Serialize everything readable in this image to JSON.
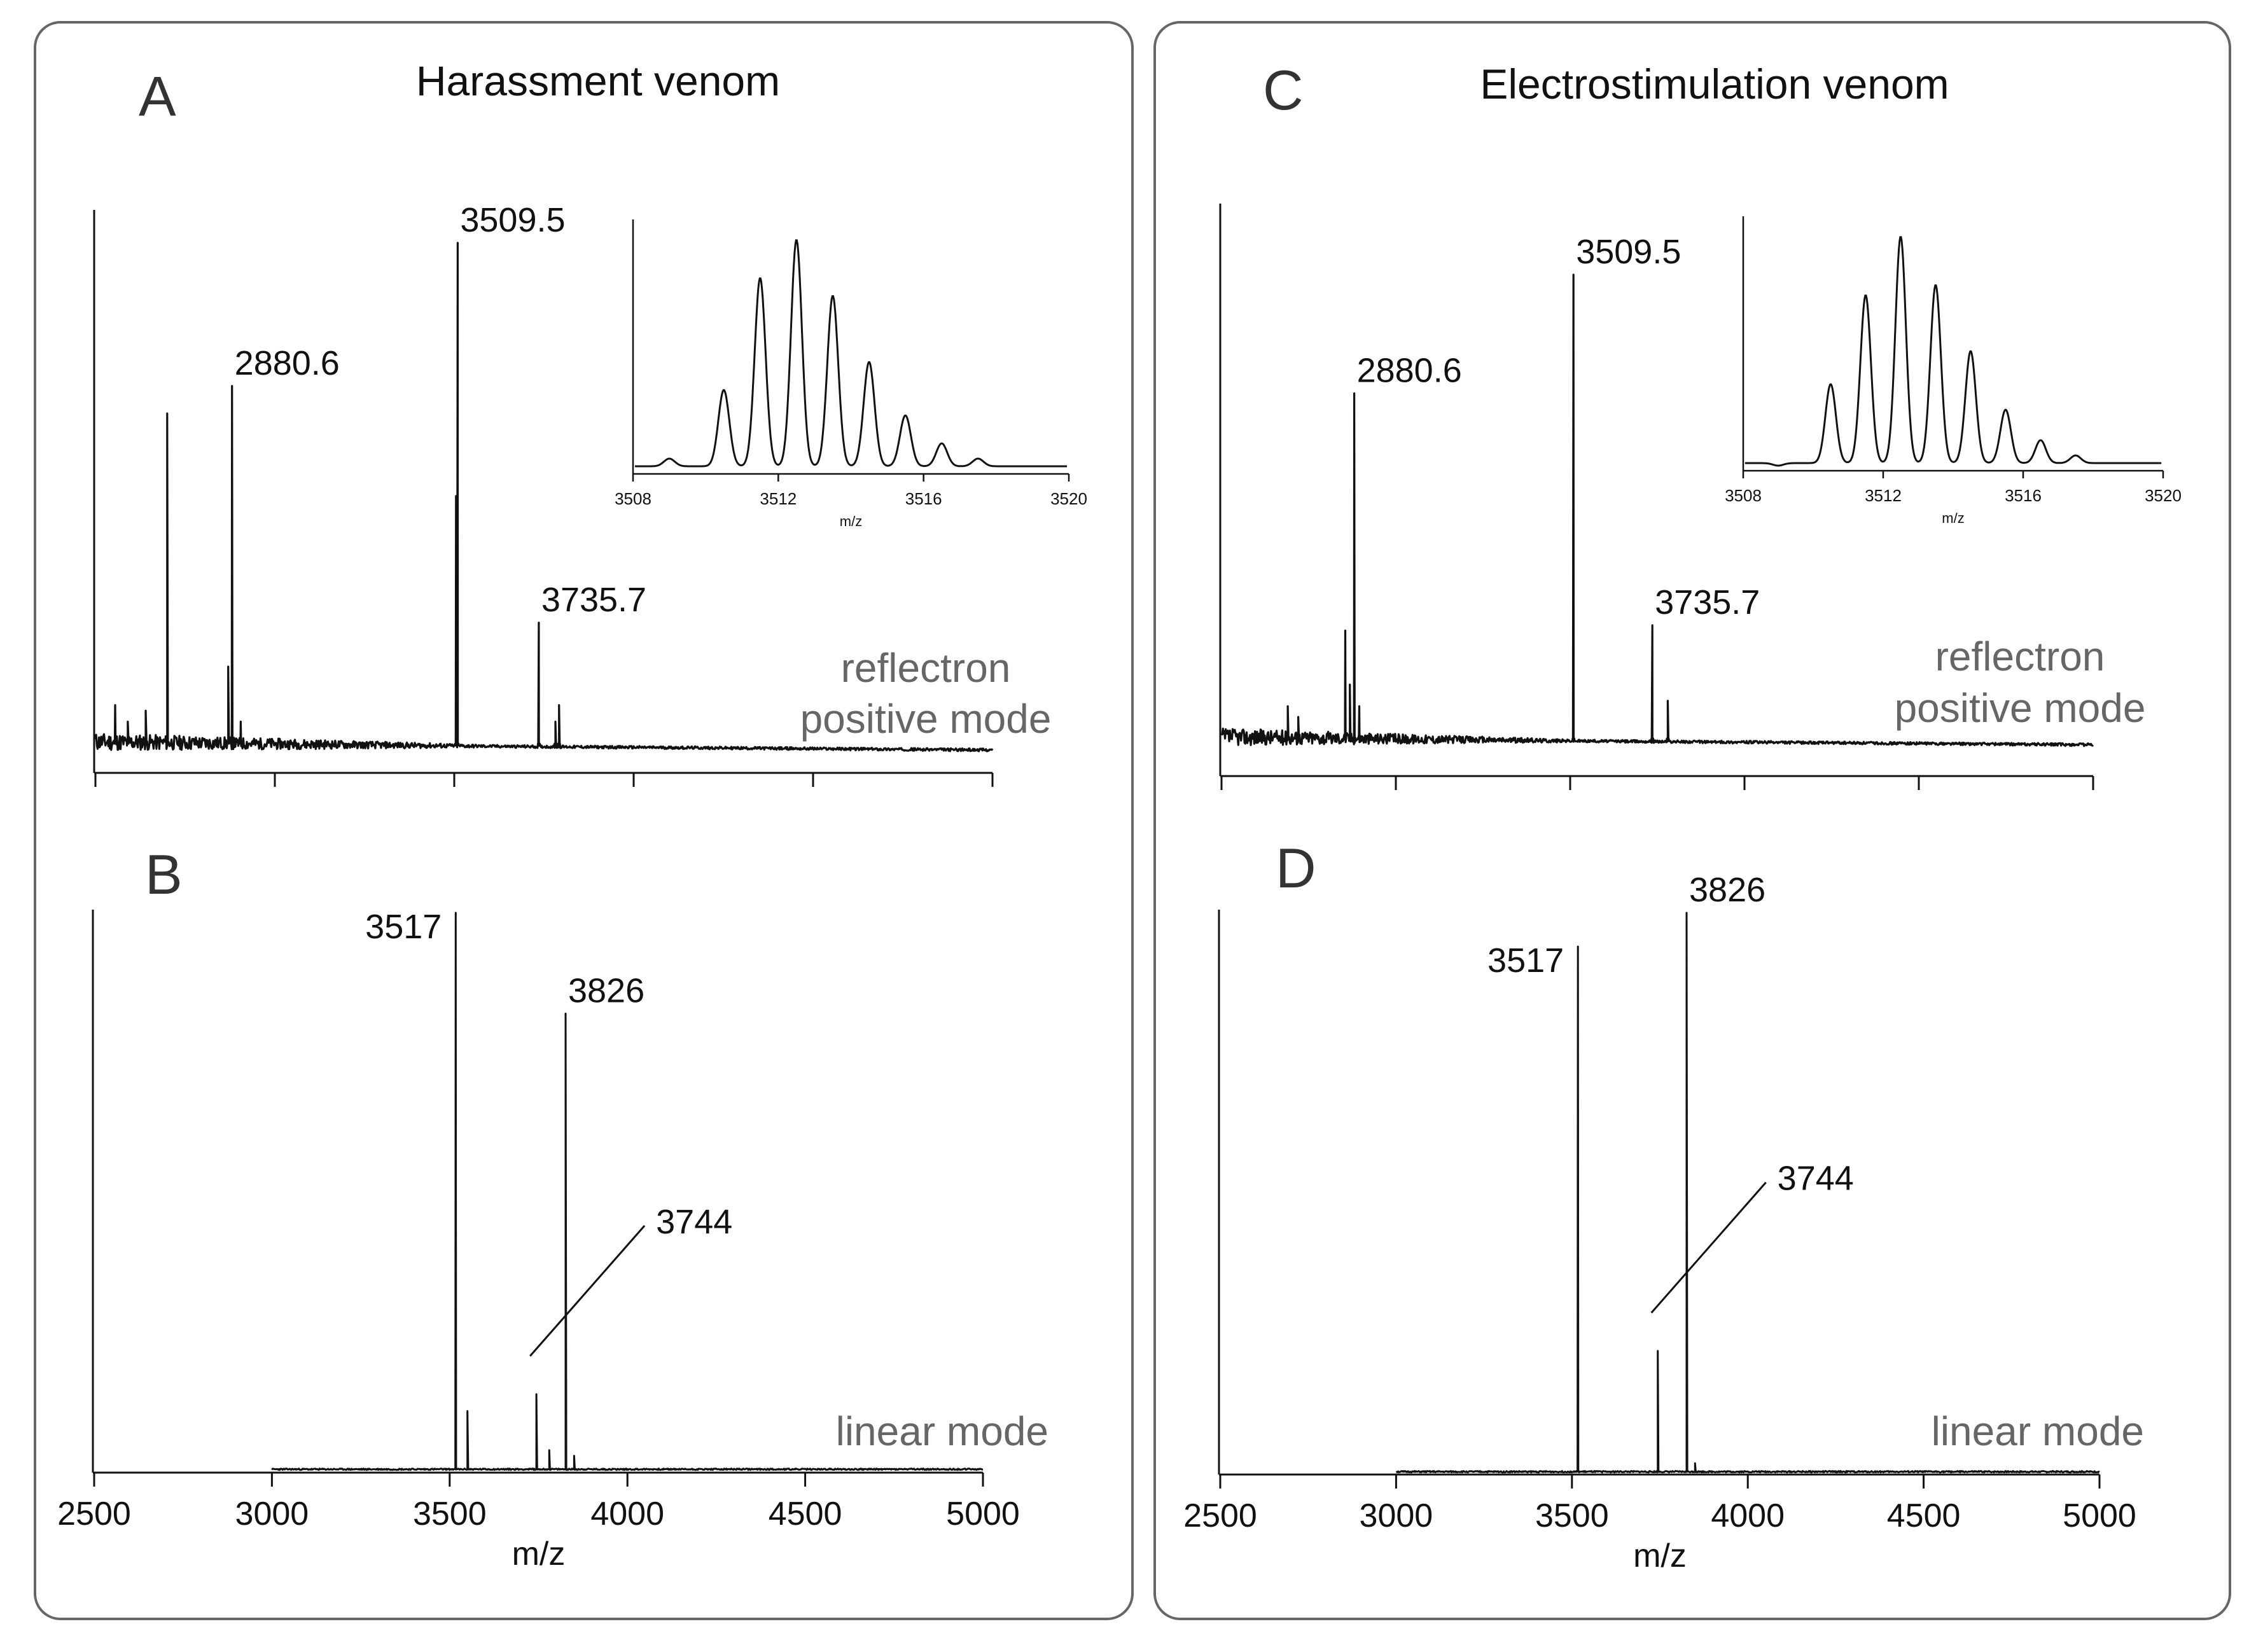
{
  "figure": {
    "panels_left": {
      "title": "Harassment venom"
    },
    "panels_right": {
      "title": "Electrostimulation venom"
    }
  },
  "chart_data": [
    {
      "id": "A",
      "type": "line",
      "letter": "A",
      "title": "Harassment venom",
      "mode_label_line1": "reflectron",
      "mode_label_line2": "positive mode",
      "xlim": [
        2500,
        5000
      ],
      "ylim": [
        0,
        100
      ],
      "xticks": [
        2500,
        3000,
        3500,
        4000,
        4500,
        5000
      ],
      "show_tick_labels": false,
      "xlabel": "",
      "series": [
        {
          "name": "reflectron spectrum A",
          "baseline": 3,
          "noise_end": 3600,
          "peaks": [
            {
              "x": 2555,
              "y": 10
            },
            {
              "x": 2590,
              "y": 7
            },
            {
              "x": 2640,
              "y": 9
            },
            {
              "x": 2700,
              "y": 63
            },
            {
              "x": 2870,
              "y": 17
            },
            {
              "x": 2880.6,
              "y": 68
            },
            {
              "x": 2905,
              "y": 7
            },
            {
              "x": 3505,
              "y": 48
            },
            {
              "x": 3509.5,
              "y": 94
            },
            {
              "x": 3735.7,
              "y": 25
            },
            {
              "x": 3782,
              "y": 7
            },
            {
              "x": 3792,
              "y": 10
            }
          ]
        }
      ],
      "annotations": [
        {
          "label": "2880.6",
          "x": 2880.6,
          "y": 68
        },
        {
          "label": "3509.5",
          "x": 3509.5,
          "y": 94
        },
        {
          "label": "3735.7",
          "x": 3735.7,
          "y": 25
        }
      ],
      "inset": {
        "xlim": [
          3508,
          3520
        ],
        "xticks": [
          3508,
          3512,
          3516,
          3520
        ],
        "xlabel": "m/z",
        "baseline": 3,
        "peaks": [
          {
            "x": 3509.0,
            "y": 6
          },
          {
            "x": 3510.0,
            "y": 3
          },
          {
            "x": 3510.5,
            "y": 33
          },
          {
            "x": 3511.5,
            "y": 77
          },
          {
            "x": 3512.5,
            "y": 92
          },
          {
            "x": 3513.5,
            "y": 70
          },
          {
            "x": 3514.5,
            "y": 44
          },
          {
            "x": 3515.5,
            "y": 23
          },
          {
            "x": 3516.5,
            "y": 12
          },
          {
            "x": 3517.5,
            "y": 6
          },
          {
            "x": 3518.5,
            "y": 3
          }
        ]
      }
    },
    {
      "id": "B",
      "type": "line",
      "letter": "B",
      "title": "",
      "mode_label_line1": "linear mode",
      "mode_label_line2": "",
      "xlim": [
        2500,
        5000
      ],
      "ylim": [
        0,
        100
      ],
      "xticks": [
        2500,
        3000,
        3500,
        4000,
        4500,
        5000
      ],
      "show_tick_labels": true,
      "xlabel": "m/z",
      "series": [
        {
          "name": "linear spectrum B",
          "baseline": 0.6,
          "start": 3000,
          "peaks": [
            {
              "x": 3517,
              "y": 100
            },
            {
              "x": 3550,
              "y": 11
            },
            {
              "x": 3744,
              "y": 14
            },
            {
              "x": 3780,
              "y": 4
            },
            {
              "x": 3826,
              "y": 82
            },
            {
              "x": 3850,
              "y": 3
            }
          ]
        }
      ],
      "annotations": [
        {
          "label": "3517",
          "x": 3517,
          "y": 100
        },
        {
          "label": "3826",
          "x": 3826,
          "y": 82
        },
        {
          "label": "3744",
          "x": 3744,
          "y": 14,
          "leader": true
        }
      ]
    },
    {
      "id": "C",
      "type": "line",
      "letter": "C",
      "title": "Electrostimulation venom",
      "mode_label_line1": "reflectron",
      "mode_label_line2": "positive mode",
      "xlim": [
        2500,
        5000
      ],
      "ylim": [
        0,
        100
      ],
      "xticks": [
        2500,
        3000,
        3500,
        4000,
        4500,
        5000
      ],
      "show_tick_labels": false,
      "xlabel": "",
      "series": [
        {
          "name": "reflectron spectrum C",
          "baseline": 2,
          "noise_end": 3500,
          "peaks": [
            {
              "x": 2690,
              "y": 8
            },
            {
              "x": 2720,
              "y": 6
            },
            {
              "x": 2855,
              "y": 22
            },
            {
              "x": 2868,
              "y": 12
            },
            {
              "x": 2880.6,
              "y": 66
            },
            {
              "x": 2895,
              "y": 8
            },
            {
              "x": 3509.5,
              "y": 88
            },
            {
              "x": 3735.7,
              "y": 23
            },
            {
              "x": 3780,
              "y": 9
            }
          ]
        }
      ],
      "annotations": [
        {
          "label": "2880.6",
          "x": 2880.6,
          "y": 66
        },
        {
          "label": "3509.5",
          "x": 3509.5,
          "y": 88
        },
        {
          "label": "3735.7",
          "x": 3735.7,
          "y": 23
        }
      ],
      "inset": {
        "xlim": [
          3508,
          3520
        ],
        "xticks": [
          3508,
          3512,
          3516,
          3520
        ],
        "xlabel": "m/z",
        "baseline": 3,
        "peaks": [
          {
            "x": 3509.0,
            "y": 2
          },
          {
            "x": 3510.5,
            "y": 34
          },
          {
            "x": 3511.5,
            "y": 69
          },
          {
            "x": 3512.5,
            "y": 92
          },
          {
            "x": 3513.5,
            "y": 73
          },
          {
            "x": 3514.5,
            "y": 47
          },
          {
            "x": 3515.5,
            "y": 24
          },
          {
            "x": 3516.5,
            "y": 12
          },
          {
            "x": 3517.5,
            "y": 6
          },
          {
            "x": 3518.5,
            "y": 3
          }
        ]
      }
    },
    {
      "id": "D",
      "type": "line",
      "letter": "D",
      "title": "",
      "mode_label_line1": "linear mode",
      "mode_label_line2": "",
      "xlim": [
        2500,
        5000
      ],
      "ylim": [
        0,
        100
      ],
      "xticks": [
        2500,
        3000,
        3500,
        4000,
        4500,
        5000
      ],
      "show_tick_labels": true,
      "xlabel": "m/z",
      "series": [
        {
          "name": "linear spectrum D",
          "baseline": 0.5,
          "start": 3000,
          "peaks": [
            {
              "x": 3517,
              "y": 94
            },
            {
              "x": 3744,
              "y": 22
            },
            {
              "x": 3826,
              "y": 100
            },
            {
              "x": 3850,
              "y": 2
            }
          ]
        }
      ],
      "annotations": [
        {
          "label": "3517",
          "x": 3517,
          "y": 94
        },
        {
          "label": "3826",
          "x": 3826,
          "y": 100
        },
        {
          "label": "3744",
          "x": 3744,
          "y": 22,
          "leader": true
        }
      ]
    }
  ]
}
